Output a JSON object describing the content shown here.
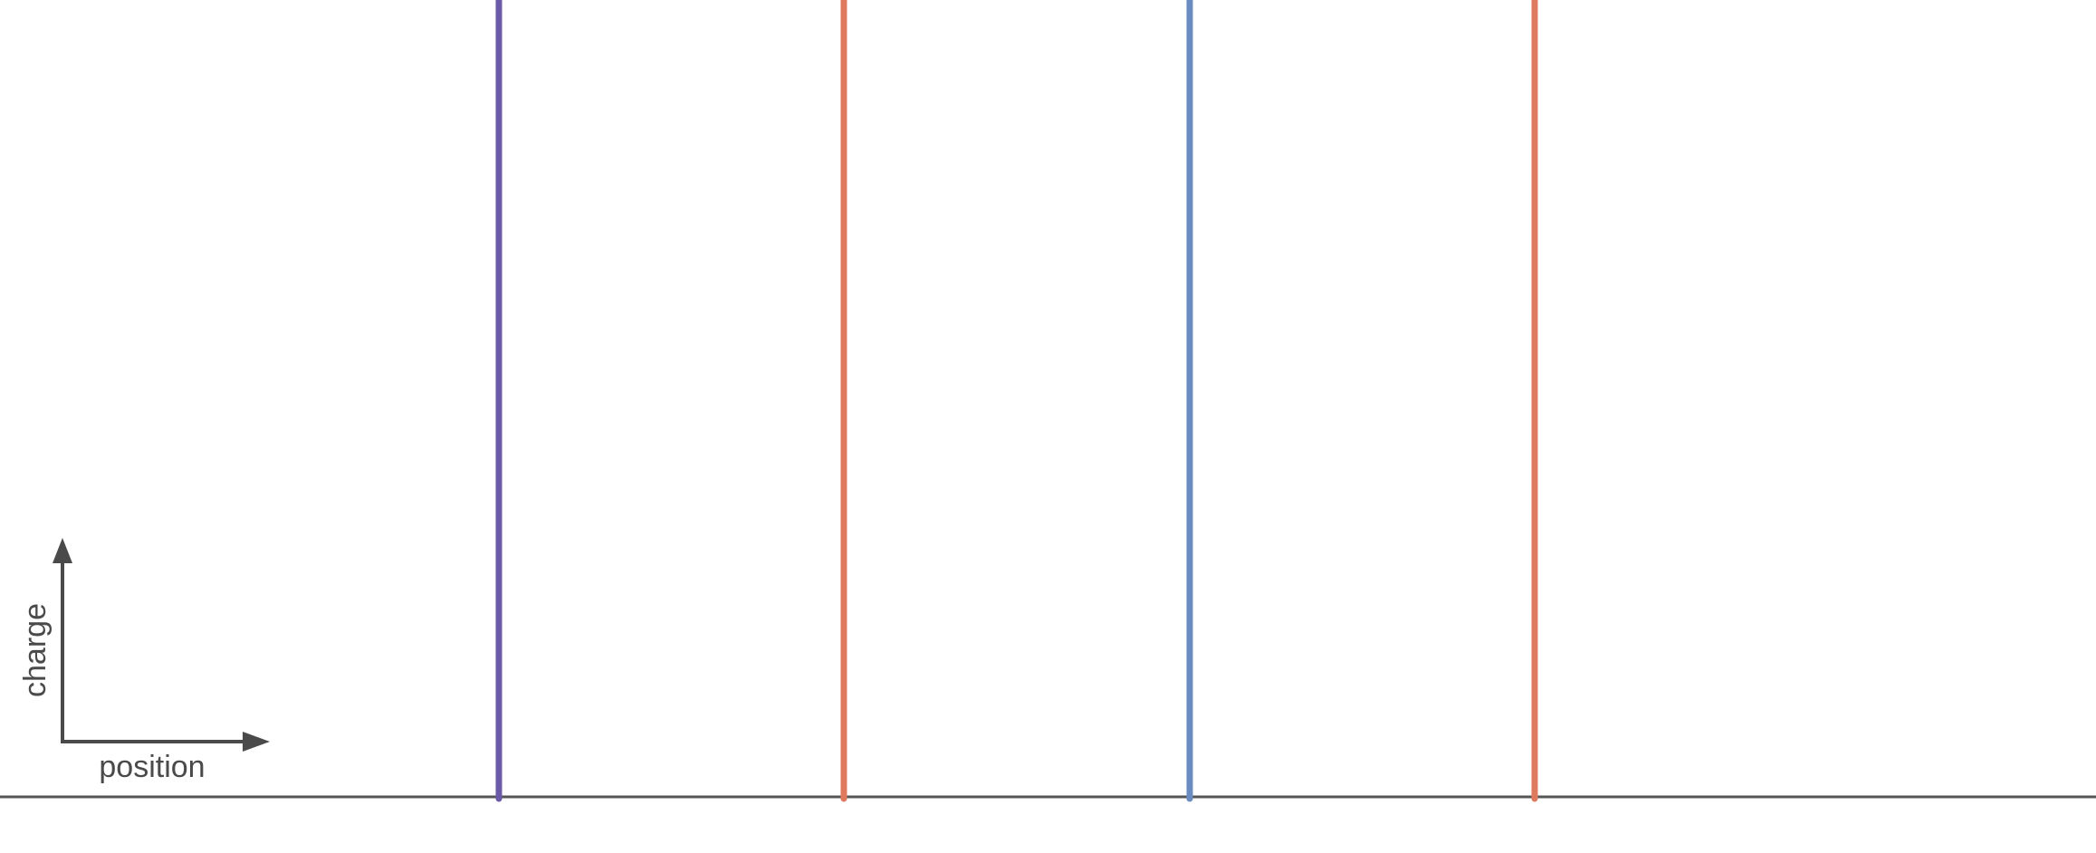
{
  "legend_axes": {
    "x_label": "position",
    "y_label": "charge"
  },
  "charges": [
    {
      "index": 1,
      "color": "#6a5aa8"
    },
    {
      "index": 2,
      "color": "#e07a5f"
    },
    {
      "index": 3,
      "color": "#6a8cc0"
    },
    {
      "index": 4,
      "color": "#e07a5f"
    }
  ],
  "colors": {
    "baseline": "#555555",
    "axis_arrows": "#4a4a4a",
    "background": "#ffffff"
  }
}
